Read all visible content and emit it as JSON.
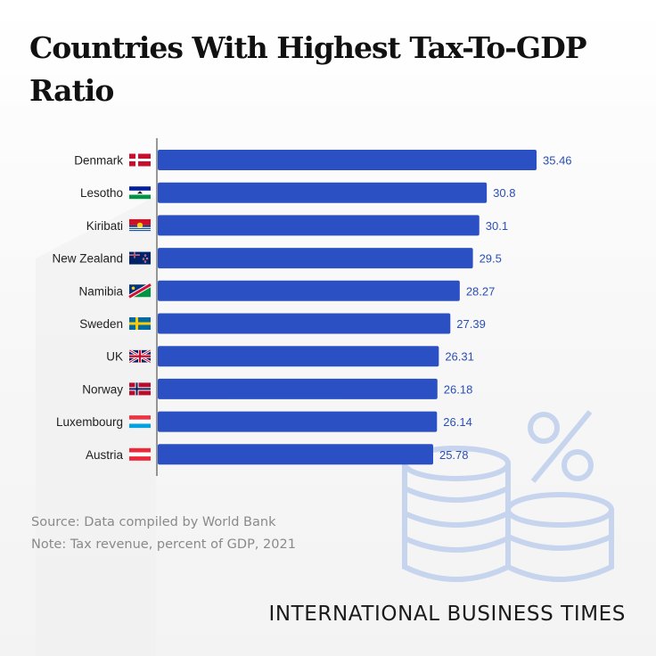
{
  "title": "Countries With Highest Tax-To-GDP Ratio",
  "colors": {
    "bar": "#2b50c4",
    "value_text": "#2a4fb8",
    "decor": "#c6d4ee"
  },
  "decoration": {
    "icon": "percent-coins-icon"
  },
  "chart_data": {
    "type": "bar",
    "orientation": "horizontal",
    "categories": [
      "Denmark",
      "Lesotho",
      "Kiribati",
      "New Zealand",
      "Namibia",
      "Sweden",
      "UK",
      "Norway",
      "Luxembourg",
      "Austria"
    ],
    "values": [
      35.46,
      30.8,
      30.1,
      29.5,
      28.27,
      27.39,
      26.31,
      26.18,
      26.14,
      25.78
    ],
    "value_labels": [
      "35.46",
      "30.8",
      "30.1",
      "29.5",
      "28.27",
      "27.39",
      "26.31",
      "26.18",
      "26.14",
      "25.78"
    ],
    "flags": [
      "denmark-flag-icon",
      "lesotho-flag-icon",
      "kiribati-flag-icon",
      "new-zealand-flag-icon",
      "namibia-flag-icon",
      "sweden-flag-icon",
      "uk-flag-icon",
      "norway-flag-icon",
      "luxembourg-flag-icon",
      "austria-flag-icon"
    ],
    "xlim": [
      0,
      35.46
    ],
    "grid": false,
    "legend": "none"
  },
  "footer": {
    "source": "Source: Data compiled by World Bank",
    "note": "Note: Tax revenue, percent of GDP, 2021",
    "brand": "INTERNATIONAL BUSINESS TIMES"
  }
}
